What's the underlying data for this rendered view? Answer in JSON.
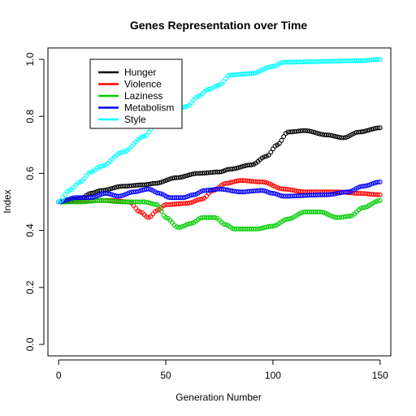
{
  "chart_data": {
    "type": "line",
    "title": "Genes Representation over Time",
    "xlabel": "Generation Number",
    "ylabel": "Index",
    "xlim": [
      -5,
      155
    ],
    "ylim": [
      -0.04,
      1.04
    ],
    "xticks": [
      0,
      50,
      100,
      150
    ],
    "yticks": [
      0.0,
      0.2,
      0.4,
      0.6,
      0.8,
      1.0
    ],
    "xtick_labels": [
      "0",
      "50",
      "100",
      "150"
    ],
    "ytick_labels": [
      "0.0",
      "0.2",
      "0.4",
      "0.6",
      "0.8",
      "1.0"
    ],
    "marker": "open-circle",
    "legend_position": "top-left",
    "series": [
      {
        "name": "Hunger",
        "color": "#000000",
        "knots": [
          [
            0,
            0.5
          ],
          [
            10,
            0.51
          ],
          [
            15,
            0.53
          ],
          [
            20,
            0.54
          ],
          [
            30,
            0.555
          ],
          [
            40,
            0.56
          ],
          [
            45,
            0.565
          ],
          [
            55,
            0.585
          ],
          [
            65,
            0.6
          ],
          [
            75,
            0.605
          ],
          [
            80,
            0.615
          ],
          [
            90,
            0.63
          ],
          [
            97,
            0.66
          ],
          [
            102,
            0.7
          ],
          [
            107,
            0.745
          ],
          [
            115,
            0.75
          ],
          [
            125,
            0.735
          ],
          [
            133,
            0.725
          ],
          [
            140,
            0.745
          ],
          [
            150,
            0.76
          ]
        ]
      },
      {
        "name": "Violence",
        "color": "#ff0000",
        "knots": [
          [
            0,
            0.5
          ],
          [
            15,
            0.505
          ],
          [
            25,
            0.505
          ],
          [
            33,
            0.5
          ],
          [
            38,
            0.465
          ],
          [
            42,
            0.445
          ],
          [
            46,
            0.47
          ],
          [
            50,
            0.49
          ],
          [
            60,
            0.495
          ],
          [
            67,
            0.51
          ],
          [
            72,
            0.54
          ],
          [
            78,
            0.565
          ],
          [
            85,
            0.575
          ],
          [
            95,
            0.57
          ],
          [
            105,
            0.545
          ],
          [
            115,
            0.535
          ],
          [
            130,
            0.535
          ],
          [
            140,
            0.53
          ],
          [
            150,
            0.525
          ]
        ]
      },
      {
        "name": "Laziness",
        "color": "#00cd00",
        "knots": [
          [
            0,
            0.5
          ],
          [
            10,
            0.5
          ],
          [
            20,
            0.505
          ],
          [
            30,
            0.5
          ],
          [
            40,
            0.5
          ],
          [
            46,
            0.49
          ],
          [
            50,
            0.445
          ],
          [
            56,
            0.41
          ],
          [
            62,
            0.425
          ],
          [
            67,
            0.445
          ],
          [
            73,
            0.445
          ],
          [
            78,
            0.42
          ],
          [
            82,
            0.405
          ],
          [
            92,
            0.405
          ],
          [
            100,
            0.415
          ],
          [
            107,
            0.44
          ],
          [
            115,
            0.465
          ],
          [
            122,
            0.465
          ],
          [
            130,
            0.445
          ],
          [
            136,
            0.45
          ],
          [
            142,
            0.48
          ],
          [
            150,
            0.505
          ]
        ]
      },
      {
        "name": "Metabolism",
        "color": "#0000ff",
        "knots": [
          [
            0,
            0.5
          ],
          [
            8,
            0.515
          ],
          [
            15,
            0.515
          ],
          [
            22,
            0.53
          ],
          [
            28,
            0.52
          ],
          [
            35,
            0.535
          ],
          [
            42,
            0.545
          ],
          [
            47,
            0.53
          ],
          [
            52,
            0.515
          ],
          [
            58,
            0.515
          ],
          [
            63,
            0.525
          ],
          [
            68,
            0.54
          ],
          [
            75,
            0.545
          ],
          [
            85,
            0.535
          ],
          [
            95,
            0.54
          ],
          [
            100,
            0.53
          ],
          [
            105,
            0.52
          ],
          [
            125,
            0.525
          ],
          [
            135,
            0.535
          ],
          [
            142,
            0.555
          ],
          [
            150,
            0.57
          ]
        ]
      },
      {
        "name": "Style",
        "color": "#00ffff",
        "knots": [
          [
            0,
            0.5
          ],
          [
            5,
            0.54
          ],
          [
            10,
            0.57
          ],
          [
            15,
            0.605
          ],
          [
            20,
            0.625
          ],
          [
            30,
            0.675
          ],
          [
            40,
            0.73
          ],
          [
            45,
            0.77
          ],
          [
            50,
            0.815
          ],
          [
            55,
            0.825
          ],
          [
            60,
            0.835
          ],
          [
            65,
            0.87
          ],
          [
            70,
            0.895
          ],
          [
            75,
            0.91
          ],
          [
            80,
            0.945
          ],
          [
            90,
            0.95
          ],
          [
            100,
            0.975
          ],
          [
            105,
            0.99
          ],
          [
            140,
            0.995
          ],
          [
            150,
            1.0
          ]
        ]
      }
    ]
  }
}
